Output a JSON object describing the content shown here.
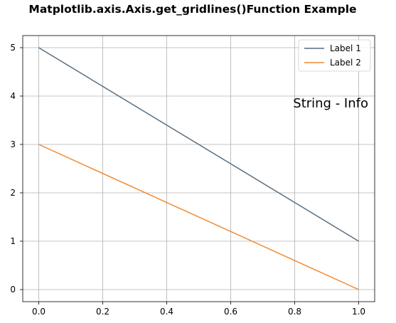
{
  "chart_data": {
    "type": "line",
    "title": "Matplotlib.axis.Axis.get_gridlines()Function Example",
    "xlabel": "",
    "ylabel": "",
    "xlim": [
      -0.05,
      1.05
    ],
    "ylim": [
      -0.25,
      5.25
    ],
    "x_ticks": [
      0.0,
      0.2,
      0.4,
      0.6,
      0.8,
      1.0
    ],
    "x_tick_labels": [
      "0.0",
      "0.2",
      "0.4",
      "0.6",
      "0.8",
      "1.0"
    ],
    "y_ticks": [
      0,
      1,
      2,
      3,
      4,
      5
    ],
    "y_tick_labels": [
      "0",
      "1",
      "2",
      "3",
      "4",
      "5"
    ],
    "grid": true,
    "legend_position": "top-right",
    "series": [
      {
        "name": "Label 1",
        "color": "#5a6f80",
        "x": [
          0.0,
          1.0
        ],
        "y": [
          5,
          1
        ]
      },
      {
        "name": "Label 2",
        "color": "#f08a30",
        "x": [
          0.0,
          1.0
        ],
        "y": [
          3,
          0
        ]
      }
    ],
    "annotations": [
      {
        "text": "String - Info",
        "x": 1.03,
        "y": 3.85
      }
    ]
  }
}
